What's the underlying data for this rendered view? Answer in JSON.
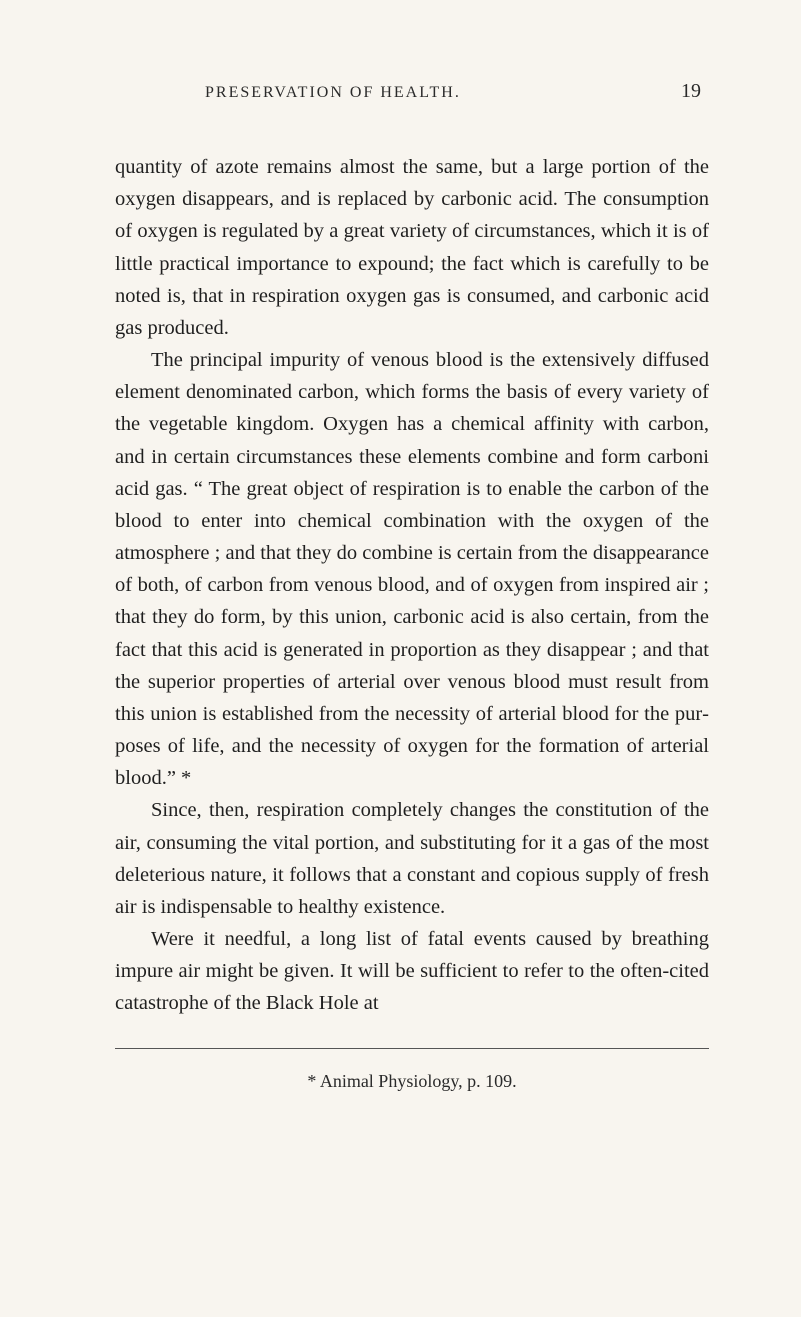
{
  "header": {
    "running_title": "PRESERVATION OF HEALTH.",
    "page_number": "19"
  },
  "paragraphs": {
    "p1": "quantity of azote remains almost the same, but a large portion of the oxygen disappears, and is replaced by car­bonic acid. The consumption of oxygen is regulated by a great variety of circumstances, which it is of little prac­tical importance to expound; the fact which is carefully to be noted is, that in respiration oxygen gas is consumed, and carbonic acid gas produced.",
    "p2": "The principal impurity of venous blood is the exten­sively diffused element denominated carbon, which forms the basis of every variety of the vegetable kingdom. Oxy­gen has a chemical affinity with carbon, and in certain circumstances these elements combine and form carboni acid gas. “ The great object of respiration is to enable the carbon of the blood to enter into chemical combination with the oxygen of the atmosphere ; and that they do combine is certain from the disappearance of both, of car­bon from venous blood, and of oxygen from inspired air ; that they do form, by this union, carbonic acid is also cer­tain, from the fact that this acid is generated in propor­tion as they disappear ; and that the superior properties of arterial over venous blood must result from this union is established from the necessity of arterial blood for the pur­poses of life, and the necessity of oxygen for the formation of arterial blood.” *",
    "p3": "Since, then, respiration completely changes the con­stitution of the air, consuming the vital portion, and sub­stituting for it a gas of the most deleterious nature, it follows that a constant and copious supply of fresh air is indispensable to healthy existence.",
    "p4": "Were it needful, a long list of fatal events caused by breathing impure air might be given. It will be sufficient to refer to the often-cited catastrophe of the Black Hole at"
  },
  "footnote": "* Animal Physiology, p. 109."
}
